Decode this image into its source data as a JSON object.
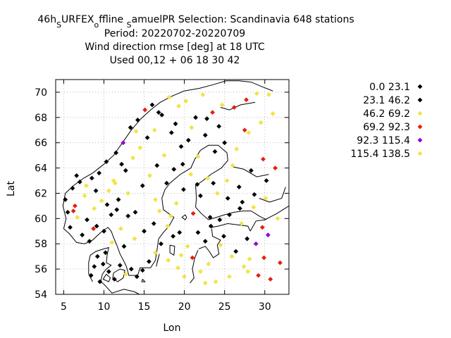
{
  "chart_data": {
    "type": "scatter",
    "title_lines": [
      "46h",
      "Period: 20220702-20220709",
      "Wind direction rmse [deg] at  18 UTC",
      "Used  00,12  + 06 18 30 42"
    ],
    "title_runs": [
      {
        "text": "46h",
        "sub": false
      },
      {
        "text": "S",
        "sub": true
      },
      {
        "text": "URFEX",
        "sub": false
      },
      {
        "text": "o",
        "sub": true
      },
      {
        "text": "ffline ",
        "sub": false
      },
      {
        "text": "S",
        "sub": true
      },
      {
        "text": "amuelPR   Selection: Scandinavia    648 stations",
        "sub": false
      }
    ],
    "xlabel": "Lon",
    "ylabel": "Lat",
    "xlim": [
      4,
      33
    ],
    "ylim": [
      54,
      71
    ],
    "xticks": [
      5,
      10,
      15,
      20,
      25,
      30
    ],
    "yticks": [
      54,
      56,
      58,
      60,
      62,
      64,
      66,
      68,
      70
    ],
    "legend_position": "right",
    "grid": true,
    "series": [
      {
        "name": "0.0 23.1",
        "color": "#000000"
      },
      {
        "name": "23.1 46.2",
        "color": "#000000"
      },
      {
        "name": "46.2 69.2",
        "color": "#f0e442"
      },
      {
        "name": "69.2 92.3",
        "color": "#e51e10"
      },
      {
        "name": "92.3 115.4",
        "color": "#9400d3"
      },
      {
        "name": "115.4 138.5",
        "color": "#f0e442"
      }
    ],
    "points": [
      [
        5.2,
        61.5,
        0
      ],
      [
        5.5,
        60.5,
        1
      ],
      [
        5.8,
        59.3,
        0
      ],
      [
        6.1,
        62.4,
        1
      ],
      [
        6.4,
        61.0,
        3
      ],
      [
        6.7,
        60.1,
        2
      ],
      [
        7.0,
        62.9,
        0
      ],
      [
        7.3,
        58.7,
        1
      ],
      [
        7.6,
        61.8,
        2
      ],
      [
        7.9,
        59.9,
        0
      ],
      [
        8.2,
        58.2,
        1
      ],
      [
        8.5,
        63.2,
        0
      ],
      [
        8.8,
        60.8,
        2
      ],
      [
        9.1,
        59.4,
        1
      ],
      [
        9.4,
        63.6,
        0
      ],
      [
        9.7,
        61.4,
        2
      ],
      [
        10.0,
        59.0,
        1
      ],
      [
        10.3,
        64.5,
        0
      ],
      [
        10.6,
        62.2,
        5
      ],
      [
        10.9,
        60.3,
        1
      ],
      [
        11.2,
        63.0,
        2
      ],
      [
        11.5,
        65.2,
        0
      ],
      [
        11.8,
        61.5,
        1
      ],
      [
        12.1,
        59.2,
        2
      ],
      [
        12.4,
        66.0,
        4
      ],
      [
        12.7,
        63.8,
        1
      ],
      [
        13.0,
        62.0,
        2
      ],
      [
        13.3,
        67.2,
        0
      ],
      [
        13.6,
        64.8,
        5
      ],
      [
        13.9,
        60.5,
        1
      ],
      [
        14.2,
        67.8,
        0
      ],
      [
        14.5,
        65.6,
        2
      ],
      [
        14.8,
        62.6,
        1
      ],
      [
        15.1,
        68.6,
        3
      ],
      [
        15.4,
        66.4,
        0
      ],
      [
        15.7,
        63.4,
        2
      ],
      [
        16.0,
        69.0,
        1
      ],
      [
        16.3,
        67.0,
        5
      ],
      [
        16.6,
        64.2,
        1
      ],
      [
        16.9,
        60.6,
        2
      ],
      [
        17.2,
        68.2,
        0
      ],
      [
        17.5,
        65.0,
        2
      ],
      [
        17.8,
        62.8,
        1
      ],
      [
        18.1,
        69.6,
        2
      ],
      [
        18.4,
        66.8,
        0
      ],
      [
        18.7,
        63.9,
        1
      ],
      [
        19.0,
        61.2,
        2
      ],
      [
        19.3,
        68.9,
        5
      ],
      [
        19.6,
        65.7,
        1
      ],
      [
        19.9,
        62.3,
        0
      ],
      [
        20.2,
        69.3,
        2
      ],
      [
        20.5,
        66.2,
        1
      ],
      [
        20.8,
        63.5,
        2
      ],
      [
        21.1,
        60.4,
        3
      ],
      [
        21.4,
        68.0,
        0
      ],
      [
        21.7,
        64.9,
        2
      ],
      [
        22.0,
        61.8,
        1
      ],
      [
        22.3,
        69.8,
        2
      ],
      [
        22.6,
        66.6,
        1
      ],
      [
        22.9,
        63.2,
        5
      ],
      [
        23.2,
        60.1,
        1
      ],
      [
        23.5,
        68.4,
        3
      ],
      [
        23.8,
        65.3,
        1
      ],
      [
        24.1,
        62.0,
        2
      ],
      [
        24.4,
        59.9,
        0
      ],
      [
        24.7,
        69.0,
        2
      ],
      [
        25.0,
        66.0,
        1
      ],
      [
        25.3,
        63.0,
        2
      ],
      [
        25.6,
        60.3,
        1
      ],
      [
        25.9,
        57.0,
        2
      ],
      [
        26.2,
        68.8,
        3
      ],
      [
        26.5,
        65.5,
        2
      ],
      [
        26.8,
        62.5,
        1
      ],
      [
        27.1,
        59.6,
        5
      ],
      [
        27.4,
        56.2,
        2
      ],
      [
        27.7,
        69.4,
        3
      ],
      [
        28.0,
        66.8,
        2
      ],
      [
        28.3,
        63.8,
        1
      ],
      [
        28.6,
        60.9,
        2
      ],
      [
        28.9,
        58.0,
        4
      ],
      [
        29.2,
        55.5,
        3
      ],
      [
        29.5,
        67.6,
        2
      ],
      [
        29.8,
        64.7,
        3
      ],
      [
        30.1,
        61.6,
        2
      ],
      [
        30.4,
        58.7,
        4
      ],
      [
        30.7,
        55.2,
        3
      ],
      [
        31.0,
        68.3,
        2
      ],
      [
        31.3,
        64.0,
        3
      ],
      [
        31.6,
        60.0,
        2
      ],
      [
        31.9,
        56.5,
        3
      ],
      [
        30.5,
        69.8,
        5
      ],
      [
        29.0,
        69.9,
        2
      ],
      [
        27.5,
        67.0,
        3
      ],
      [
        26.0,
        64.2,
        2
      ],
      [
        24.5,
        57.9,
        5
      ],
      [
        23.0,
        56.4,
        2
      ],
      [
        22.0,
        55.8,
        5
      ],
      [
        21.0,
        56.9,
        3
      ],
      [
        20.4,
        57.8,
        2
      ],
      [
        19.6,
        57.1,
        5
      ],
      [
        18.6,
        58.6,
        1
      ],
      [
        17.9,
        59.4,
        2
      ],
      [
        17.1,
        58.0,
        1
      ],
      [
        16.4,
        57.3,
        5
      ],
      [
        15.6,
        56.6,
        1
      ],
      [
        14.8,
        55.9,
        0
      ],
      [
        14.1,
        55.4,
        1
      ],
      [
        13.4,
        56.0,
        0
      ],
      [
        12.7,
        55.6,
        5
      ],
      [
        12.0,
        56.3,
        1
      ],
      [
        11.3,
        55.2,
        0
      ],
      [
        10.6,
        55.8,
        1
      ],
      [
        9.9,
        56.4,
        0
      ],
      [
        9.2,
        57.0,
        1
      ],
      [
        8.8,
        56.2,
        0
      ],
      [
        8.4,
        55.5,
        1
      ],
      [
        9.5,
        55.0,
        0
      ],
      [
        10.2,
        57.3,
        1
      ],
      [
        11.0,
        58.1,
        2
      ],
      [
        12.5,
        57.8,
        1
      ],
      [
        13.8,
        58.4,
        2
      ],
      [
        15.0,
        59.0,
        1
      ],
      [
        16.2,
        59.6,
        0
      ],
      [
        13.0,
        60.2,
        1
      ],
      [
        11.6,
        60.7,
        0
      ],
      [
        10.4,
        61.1,
        1
      ],
      [
        9.0,
        62.2,
        0
      ],
      [
        7.8,
        62.6,
        2
      ],
      [
        6.6,
        63.4,
        1
      ],
      [
        12.2,
        64.3,
        1
      ],
      [
        14.0,
        66.9,
        2
      ],
      [
        16.8,
        68.4,
        0
      ],
      [
        18.9,
        67.5,
        1
      ],
      [
        20.9,
        67.2,
        2
      ],
      [
        22.8,
        67.9,
        1
      ],
      [
        24.3,
        67.3,
        0
      ],
      [
        19.8,
        64.3,
        0
      ],
      [
        21.6,
        62.7,
        1
      ],
      [
        23.6,
        62.8,
        0
      ],
      [
        25.4,
        61.6,
        1
      ],
      [
        27.2,
        61.3,
        0
      ],
      [
        24.9,
        58.6,
        1
      ],
      [
        22.6,
        58.2,
        0
      ],
      [
        26.4,
        57.4,
        1
      ],
      [
        28.1,
        56.8,
        2
      ],
      [
        25.6,
        55.4,
        5
      ],
      [
        23.9,
        55.0,
        2
      ],
      [
        22.6,
        54.9,
        5
      ],
      [
        27.9,
        55.8,
        5
      ],
      [
        29.9,
        56.9,
        3
      ],
      [
        8.7,
        59.2,
        3
      ],
      [
        6.2,
        60.6,
        3
      ],
      [
        11.4,
        62.8,
        5
      ],
      [
        16.4,
        61.5,
        2
      ],
      [
        18.3,
        60.2,
        5
      ],
      [
        26.9,
        60.8,
        1
      ],
      [
        28.7,
        61.9,
        0
      ],
      [
        30.2,
        63.0,
        1
      ],
      [
        29.7,
        59.3,
        3
      ],
      [
        18.0,
        56.7,
        5
      ],
      [
        19.2,
        56.1,
        5
      ],
      [
        20.0,
        55.4,
        2
      ],
      [
        21.7,
        58.9,
        1
      ],
      [
        23.3,
        59.4,
        0
      ],
      [
        19.4,
        58.9,
        1
      ],
      [
        27.8,
        58.4,
        1
      ]
    ]
  }
}
